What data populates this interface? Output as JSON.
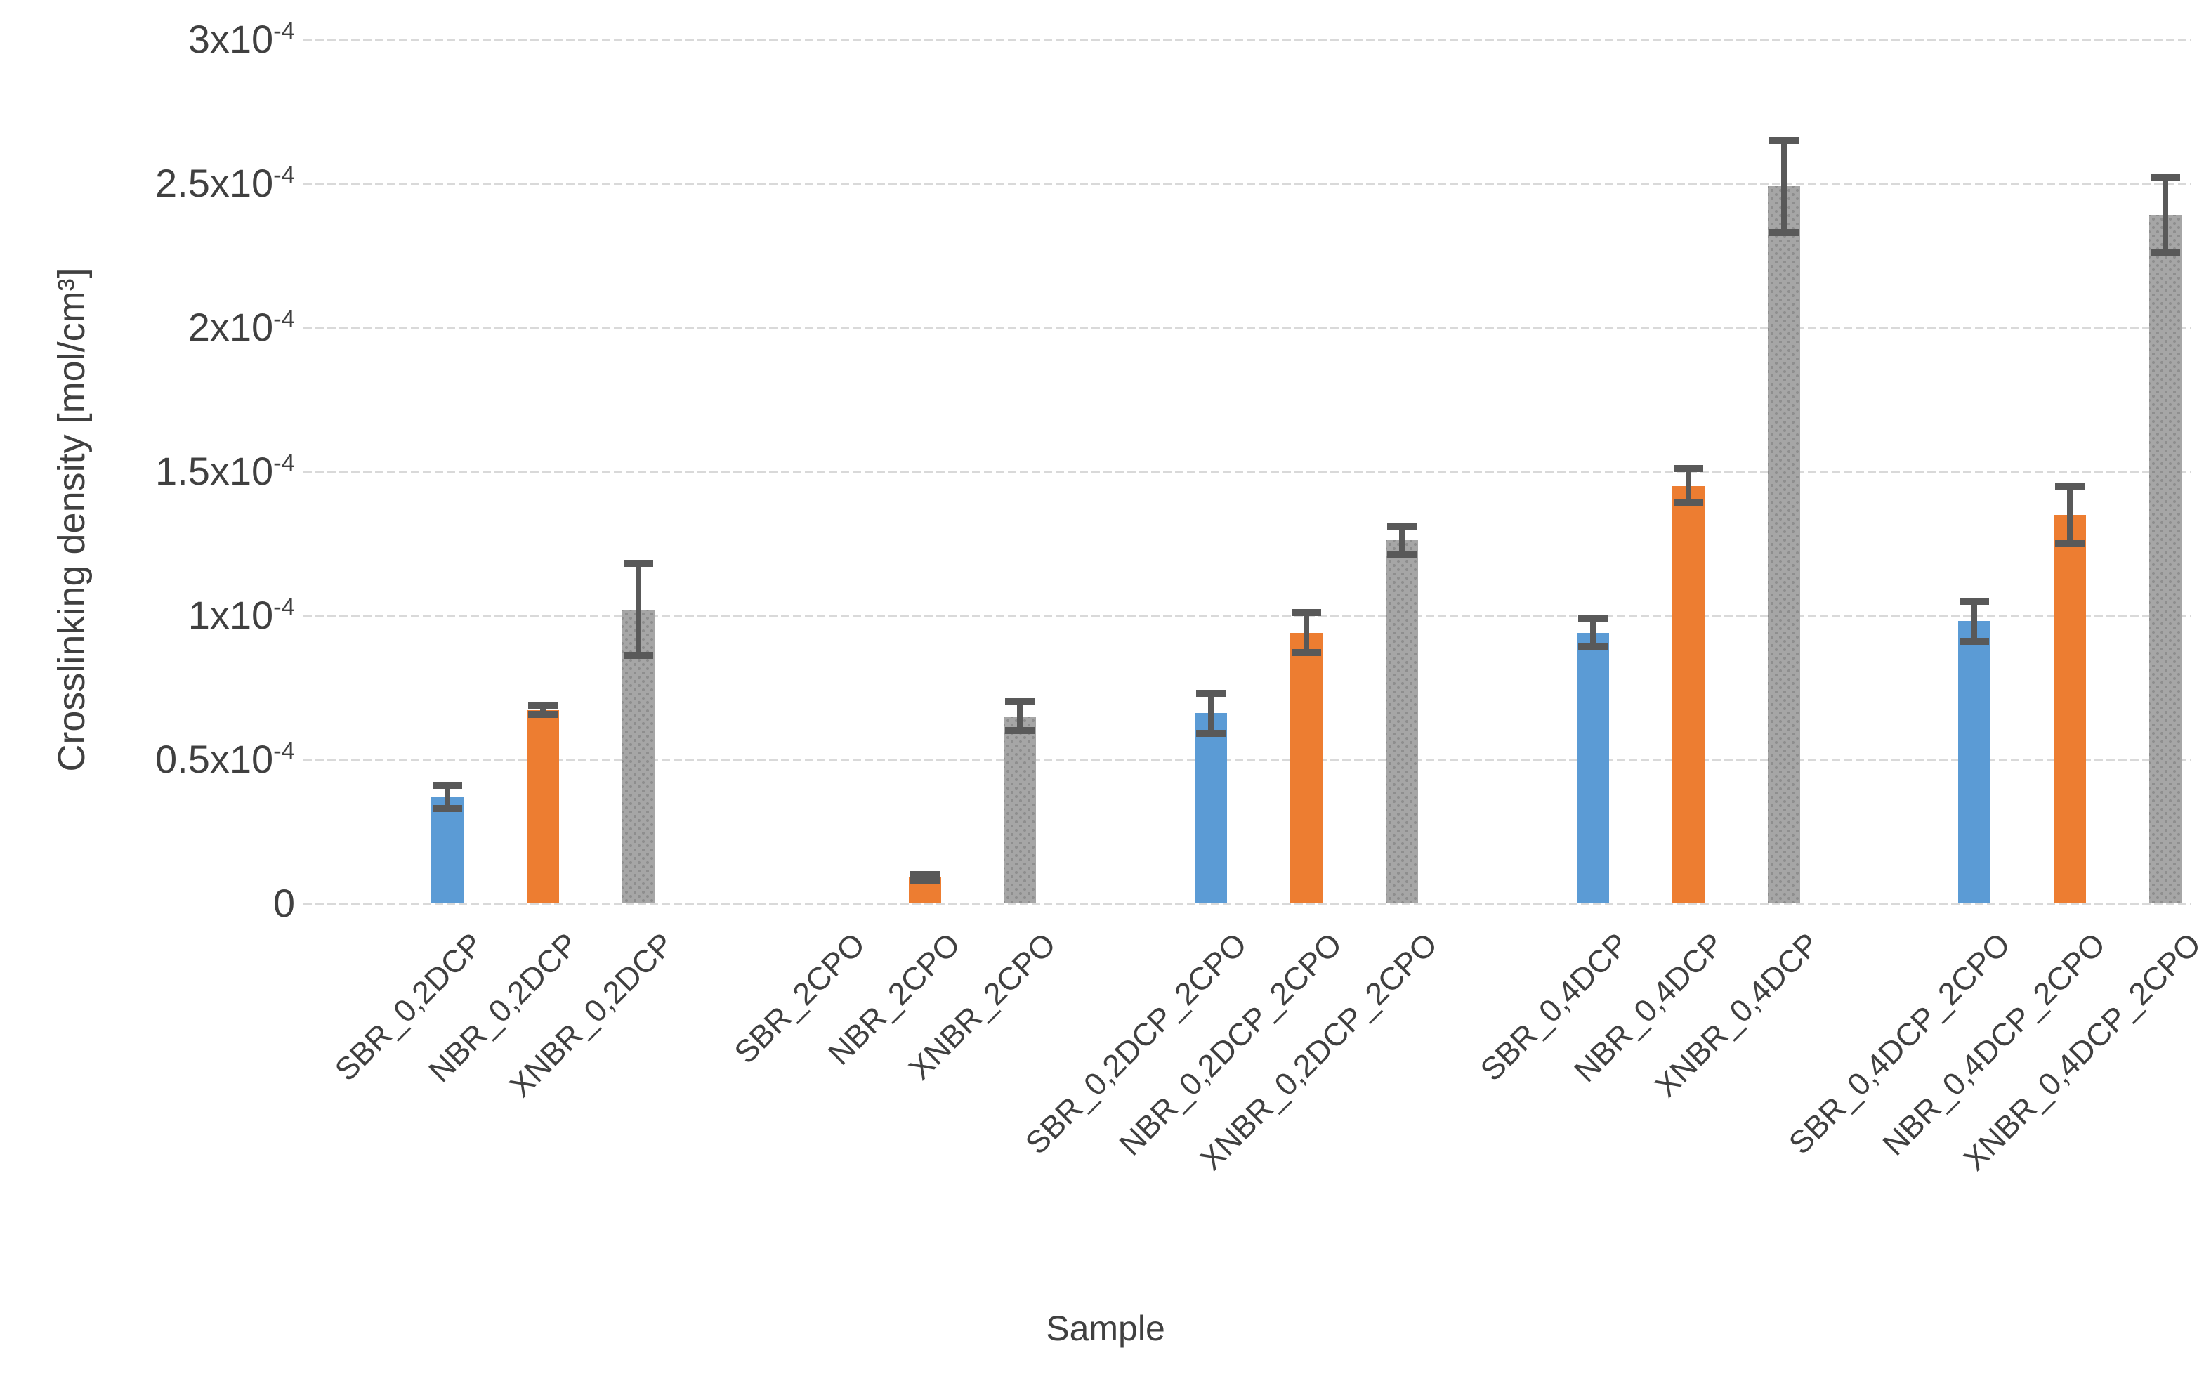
{
  "chart_data": {
    "type": "bar",
    "title": "",
    "xlabel": "Sample",
    "ylabel": "Crosslinking density [mol/cm³]",
    "value_unit": "×10⁻⁴ mol/cm³",
    "ylim_x1e4": [
      0,
      3
    ],
    "ylim_mol_per_cm3": [
      0,
      0.0003
    ],
    "grid": "horizontal dashed lines every 0.5×10⁻⁴",
    "legend": "none (colors encode polymer: SBR blue, NBR orange, XNBR gray pattern)",
    "label_rotation_deg": 45,
    "yticks": [
      {
        "v": 3,
        "m": "3x10",
        "e": "-4"
      },
      {
        "v": 2.5,
        "m": "2.5x10",
        "e": "-4"
      },
      {
        "v": 2,
        "m": "2x10",
        "e": "-4"
      },
      {
        "v": 1.5,
        "m": "1.5x10",
        "e": "-4"
      },
      {
        "v": 1,
        "m": "1x10",
        "e": "-4"
      },
      {
        "v": 0.5,
        "m": "0.5x10",
        "e": "-4"
      },
      {
        "v": 0,
        "m": "0",
        "e": ""
      }
    ],
    "categories": [
      "SBR_0,2DCP",
      "NBR_0,2DCP",
      "XNBR_0,2DCP",
      "SBR_2CPO",
      "NBR_2CPO",
      "XNBR_2CPO",
      "SBR_0,2DCP_2CPO",
      "NBR_0,2DCP_2CPO",
      "XNBR_0,2DCP_2CPO",
      "SBR_0,4DCP",
      "NBR_0,4DCP",
      "XNBR_0,4DCP",
      "SBR_0,4DCP_2CPO",
      "NBR_0,4DCP_2CPO",
      "XNBR_0,4DCP_2CPO"
    ],
    "values_x1e4": [
      0.37,
      0.67,
      1.02,
      0,
      0.09,
      0.65,
      0.66,
      0.94,
      1.26,
      0.94,
      1.45,
      2.49,
      0.98,
      1.35,
      2.39
    ],
    "errors_x1e4": [
      0.04,
      0.015,
      0.16,
      null,
      0.01,
      0.05,
      0.07,
      0.07,
      0.05,
      0.05,
      0.06,
      0.16,
      0.07,
      0.1,
      0.13
    ],
    "series_colors": {
      "SBR": "#5B9BD5",
      "NBR": "#ED7D31",
      "XNBR": "#A6A6A6"
    },
    "error_bar_color": "#595959",
    "gridline_color": "#D9D9D9",
    "text_color": "#404040",
    "groups": [
      {
        "treatment": "0,2DCP",
        "members": [
          "SBR_0,2DCP",
          "NBR_0,2DCP",
          "XNBR_0,2DCP"
        ]
      },
      {
        "treatment": "2CPO",
        "members": [
          "SBR_2CPO",
          "NBR_2CPO",
          "XNBR_2CPO"
        ]
      },
      {
        "treatment": "0,2DCP_2CPO",
        "members": [
          "SBR_0,2DCP_2CPO",
          "NBR_0,2DCP_2CPO",
          "XNBR_0,2DCP_2CPO"
        ]
      },
      {
        "treatment": "0,4DCP",
        "members": [
          "SBR_0,4DCP",
          "NBR_0,4DCP",
          "XNBR_0,4DCP"
        ]
      },
      {
        "treatment": "0,4DCP_2CPO",
        "members": [
          "SBR_0,4DCP_2CPO",
          "NBR_0,4DCP_2CPO",
          "XNBR_0,4DCP_2CPO"
        ]
      }
    ]
  }
}
